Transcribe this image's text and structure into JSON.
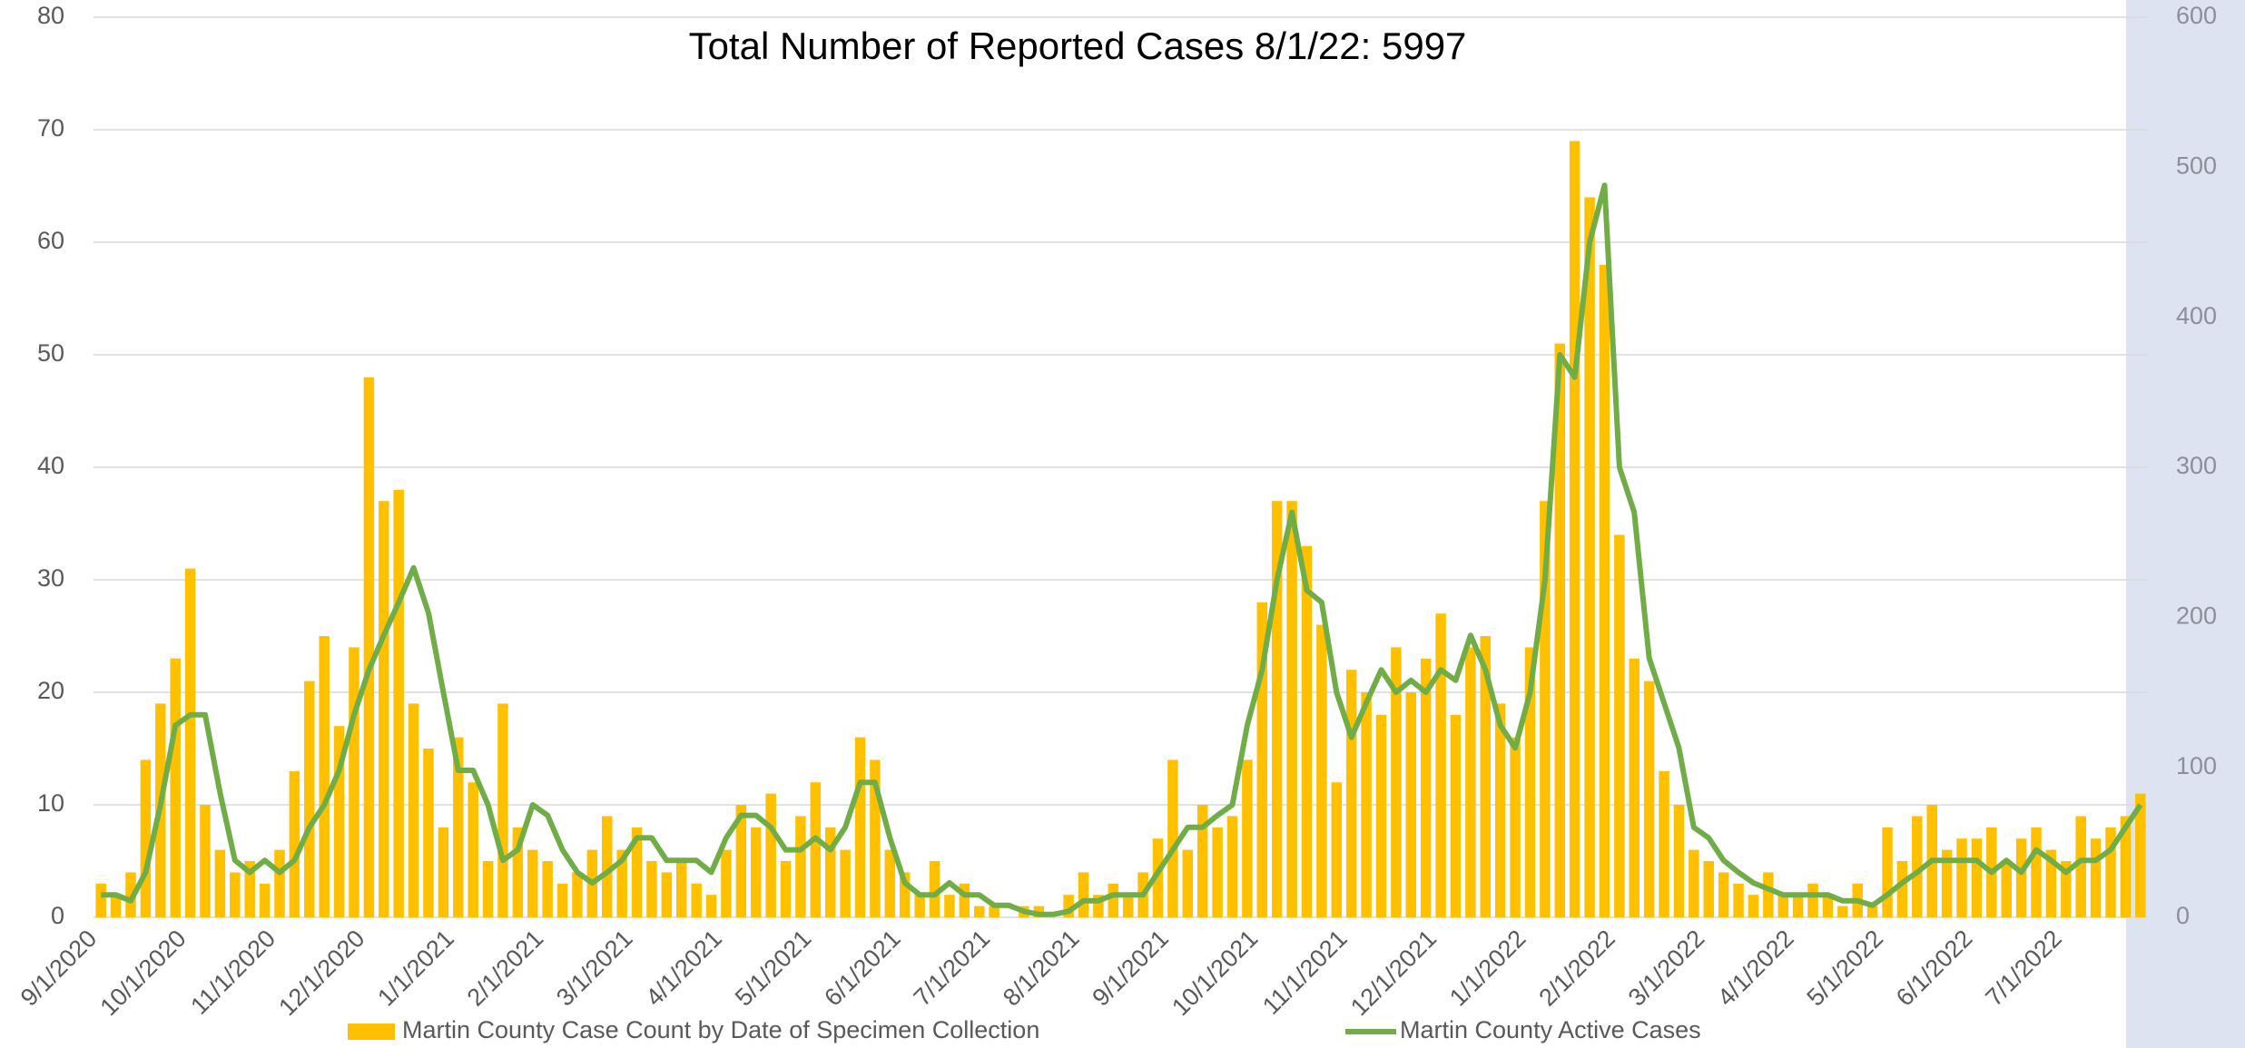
{
  "chart_data": {
    "type": "bar",
    "title": "Total Number of Reported Cases 8/1/22: 5997",
    "categories": [
      "9/1/2020",
      null,
      null,
      null,
      null,
      null,
      "10/1/2020",
      null,
      null,
      null,
      null,
      null,
      "11/1/2020",
      null,
      null,
      null,
      null,
      null,
      "12/1/2020",
      null,
      null,
      null,
      null,
      null,
      "1/1/2021",
      null,
      null,
      null,
      null,
      null,
      "2/1/2021",
      null,
      null,
      null,
      null,
      null,
      "3/1/2021",
      null,
      null,
      null,
      null,
      null,
      "4/1/2021",
      null,
      null,
      null,
      null,
      null,
      "5/1/2021",
      null,
      null,
      null,
      null,
      null,
      "6/1/2021",
      null,
      null,
      null,
      null,
      null,
      "7/1/2021",
      null,
      null,
      null,
      null,
      null,
      "8/1/2021",
      null,
      null,
      null,
      null,
      null,
      "9/1/2021",
      null,
      null,
      null,
      null,
      null,
      "10/1/2021",
      null,
      null,
      null,
      null,
      null,
      "11/1/2021",
      null,
      null,
      null,
      null,
      null,
      "12/1/2021",
      null,
      null,
      null,
      null,
      null,
      "1/1/2022",
      null,
      null,
      null,
      null,
      null,
      "2/1/2022",
      null,
      null,
      null,
      null,
      null,
      "3/1/2022",
      null,
      null,
      null,
      null,
      null,
      "4/1/2022",
      null,
      null,
      null,
      null,
      null,
      "5/1/2022",
      null,
      null,
      null,
      null,
      null,
      "6/1/2022",
      null,
      null,
      null,
      null,
      null,
      "7/1/2022",
      null,
      null,
      null,
      null,
      null
    ],
    "series": [
      {
        "name": "Martin County Case Count by Date of Specimen Collection",
        "color": "#FFC000",
        "type": "bar",
        "values": [
          3,
          2,
          4,
          14,
          19,
          23,
          31,
          10,
          6,
          4,
          5,
          3,
          6,
          13,
          21,
          25,
          17,
          24,
          48,
          37,
          38,
          19,
          15,
          8,
          16,
          12,
          5,
          19,
          8,
          6,
          5,
          3,
          4,
          6,
          9,
          6,
          8,
          5,
          4,
          5,
          3,
          2,
          6,
          10,
          8,
          11,
          5,
          9,
          12,
          8,
          6,
          16,
          14,
          6,
          4,
          2,
          5,
          2,
          3,
          1,
          1,
          0,
          1,
          1,
          0,
          2,
          4,
          2,
          3,
          2,
          4,
          7,
          14,
          6,
          10,
          8,
          9,
          14,
          28,
          37,
          37,
          33,
          26,
          12,
          22,
          20,
          18,
          24,
          20,
          23,
          27,
          18,
          24,
          25,
          19,
          16,
          24,
          37,
          51,
          69,
          64,
          58,
          34,
          23,
          21,
          13,
          10,
          6,
          5,
          4,
          3,
          2,
          4,
          2,
          2,
          3,
          2,
          1,
          3,
          1,
          8,
          5,
          9,
          10,
          6,
          7,
          7,
          8,
          5,
          7,
          8,
          6,
          5,
          9,
          7,
          8,
          9,
          11
        ]
      },
      {
        "name": "Martin County Active Cases",
        "color": "#70AD47",
        "type": "line",
        "axis": "y2",
        "values": [
          15,
          15,
          11,
          30,
          75,
          128,
          135,
          135,
          83,
          38,
          30,
          38,
          30,
          38,
          60,
          75,
          98,
          135,
          165,
          188,
          210,
          233,
          203,
          150,
          98,
          98,
          75,
          38,
          45,
          75,
          68,
          45,
          30,
          23,
          30,
          38,
          53,
          53,
          38,
          38,
          38,
          30,
          53,
          68,
          68,
          60,
          45,
          45,
          53,
          45,
          60,
          90,
          90,
          53,
          23,
          15,
          15,
          23,
          15,
          15,
          8,
          8,
          4,
          2,
          2,
          4,
          11,
          11,
          15,
          15,
          15,
          30,
          45,
          60,
          60,
          68,
          75,
          128,
          165,
          225,
          270,
          218,
          210,
          150,
          120,
          143,
          165,
          150,
          158,
          150,
          165,
          158,
          188,
          165,
          128,
          113,
          150,
          225,
          375,
          360,
          450,
          488,
          300,
          270,
          173,
          143,
          113,
          60,
          53,
          38,
          30,
          23,
          19,
          15,
          15,
          15,
          15,
          11,
          11,
          8,
          15,
          23,
          30,
          38,
          38,
          38,
          38,
          30,
          38,
          30,
          45,
          38,
          30,
          38,
          38,
          45,
          60,
          75
        ]
      }
    ],
    "ylim": [
      0,
      80
    ],
    "yticks": [
      0,
      10,
      20,
      30,
      40,
      50,
      60,
      70,
      80
    ],
    "y2lim": [
      0,
      600
    ],
    "y2ticks": [
      0,
      100,
      200,
      300,
      400,
      500,
      600
    ],
    "grid": true,
    "legend": "bottom"
  }
}
